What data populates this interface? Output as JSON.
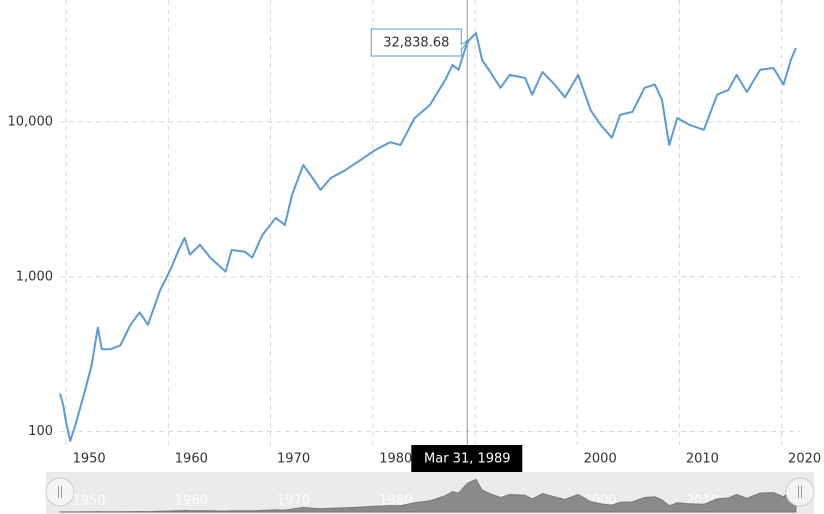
{
  "chart_data": {
    "type": "line",
    "log_y": true,
    "grid": true,
    "series": [
      {
        "color": "#5b9bd5",
        "x": [
          1949.4,
          1949.7,
          1950.0,
          1950.4,
          1950.9,
          1951.9,
          1952.5,
          1953.1,
          1953.5,
          1954.3,
          1955.3,
          1956.3,
          1957.2,
          1958.0,
          1959.2,
          1960.2,
          1961.0,
          1961.6,
          1962.1,
          1963.1,
          1964.1,
          1965.6,
          1966.2,
          1967.5,
          1968.2,
          1969.2,
          1970.5,
          1971.4,
          1972.1,
          1973.2,
          1974.1,
          1974.9,
          1975.9,
          1977.3,
          1978.8,
          1980.2,
          1981.7,
          1982.7,
          1984.1,
          1985.6,
          1987.1,
          1987.8,
          1988.4,
          1989.25,
          1990.1,
          1990.7,
          1991.5,
          1992.5,
          1993.4,
          1994.9,
          1995.6,
          1996.6,
          1997.8,
          1998.8,
          2000.1,
          2001.3,
          2002.3,
          2003.4,
          2004.2,
          2005.4,
          2006.6,
          2007.6,
          2008.3,
          2009.0,
          2009.8,
          2011.0,
          2012.4,
          2013.7,
          2014.8,
          2015.6,
          2016.6,
          2017.9,
          2019.2,
          2020.2,
          2020.9,
          2021.4
        ],
        "values": [
          176,
          150,
          115,
          87,
          110,
          190,
          270,
          470,
          340,
          340,
          360,
          490,
          590,
          490,
          820,
          1110,
          1490,
          1780,
          1390,
          1610,
          1330,
          1080,
          1490,
          1450,
          1330,
          1860,
          2400,
          2160,
          3380,
          5270,
          4350,
          3640,
          4350,
          4880,
          5670,
          6560,
          7400,
          7090,
          10600,
          12870,
          18690,
          23300,
          21700,
          32838.68,
          37480,
          25100,
          21000,
          16600,
          20100,
          19200,
          15000,
          21000,
          17400,
          14400,
          20100,
          11950,
          9570,
          7900,
          11100,
          11600,
          16600,
          17400,
          13900,
          7090,
          10600,
          9570,
          8890,
          15000,
          16100,
          20100,
          15600,
          21700,
          22300,
          17400,
          25100,
          30000
        ]
      }
    ],
    "xlim": [
      1949.4,
      2021.8
    ],
    "xticks": [
      1950,
      1960,
      1970,
      1980,
      1990,
      2000,
      2010,
      2020
    ],
    "ylim": [
      82,
      61250
    ],
    "yticks": [
      100,
      {
        "value": 1000,
        "label": "1,000"
      },
      {
        "value": 10000,
        "label": "10,000"
      }
    ],
    "tooltip": {
      "x": 1989.25,
      "value": 32838.68,
      "value_label": "32,838.68",
      "date": "Mar 31, 1989"
    }
  }
}
